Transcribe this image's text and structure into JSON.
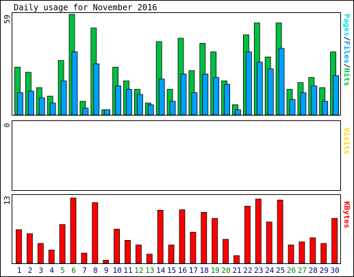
{
  "chart_data": {
    "type": "bar",
    "title": "Daily usage for November 2016",
    "categories": [
      "1",
      "2",
      "3",
      "4",
      "5",
      "6",
      "7",
      "8",
      "9",
      "10",
      "11",
      "12",
      "13",
      "14",
      "15",
      "16",
      "17",
      "18",
      "19",
      "20",
      "21",
      "22",
      "23",
      "24",
      "25",
      "26",
      "27",
      "28",
      "29",
      "30"
    ],
    "weekend_days": [
      "5",
      "6",
      "12",
      "13",
      "19",
      "20",
      "26",
      "27"
    ],
    "colors": {
      "hits": "#00c040",
      "files": "#00a0ff",
      "pages": "#00e0e0",
      "visits": "#ffd800",
      "kbytes": "#ff0000",
      "weekend_label": "#008000",
      "weekday_label": "#000080",
      "frame": "#000000"
    },
    "panels": [
      {
        "id": "hits",
        "label_parts": [
          "Pages",
          "/",
          "Files",
          "/",
          "Hits"
        ],
        "max_label": "59",
        "ylim": [
          0,
          59
        ],
        "series": [
          {
            "name": "Hits",
            "values": [
              28,
              25,
              16,
              11,
              32,
              59,
              8,
              51,
              3,
              28,
              20,
              15,
              7,
              43,
              15,
              45,
              26,
              42,
              37,
              20,
              6,
              47,
              54,
              34,
              54,
              15,
              19,
              22,
              16,
              37
            ]
          },
          {
            "name": "Files",
            "values": [
              13,
              14,
              10,
              7,
              20,
              37,
              4,
              30,
              3,
              17,
              15,
              12,
              6,
              21,
              8,
              24,
              13,
              24,
              22,
              18,
              3,
              37,
              31,
              27,
              39,
              9,
              13,
              17,
              8,
              23
            ]
          }
        ]
      },
      {
        "id": "visits",
        "label_parts": [
          "Visits"
        ],
        "max_label": "0",
        "ylim": [
          0,
          1
        ],
        "series": [
          {
            "name": "Visits",
            "values": [
              0,
              0,
              0,
              0,
              0,
              0,
              0,
              0,
              0,
              0,
              0,
              0,
              0,
              0,
              0,
              0,
              0,
              0,
              0,
              0,
              0,
              0,
              0,
              0,
              0,
              0,
              0,
              0,
              0,
              0
            ]
          }
        ]
      },
      {
        "id": "kbytes",
        "label_parts": [
          "KBytes"
        ],
        "max_label": "13",
        "ylim": [
          0,
          13
        ],
        "series": [
          {
            "name": "KBytes",
            "values": [
              6.6,
              5.8,
              3.9,
              2.6,
              7.6,
              12.8,
              2.0,
              11.9,
              0.6,
              6.7,
              4.5,
              3.6,
              1.8,
              10.4,
              3.6,
              10.5,
              6.1,
              10.0,
              8.8,
              4.7,
              1.5,
              11.2,
              12.6,
              8.1,
              12.4,
              3.6,
              4.2,
              5.0,
              3.9,
              8.8
            ]
          }
        ]
      }
    ]
  }
}
